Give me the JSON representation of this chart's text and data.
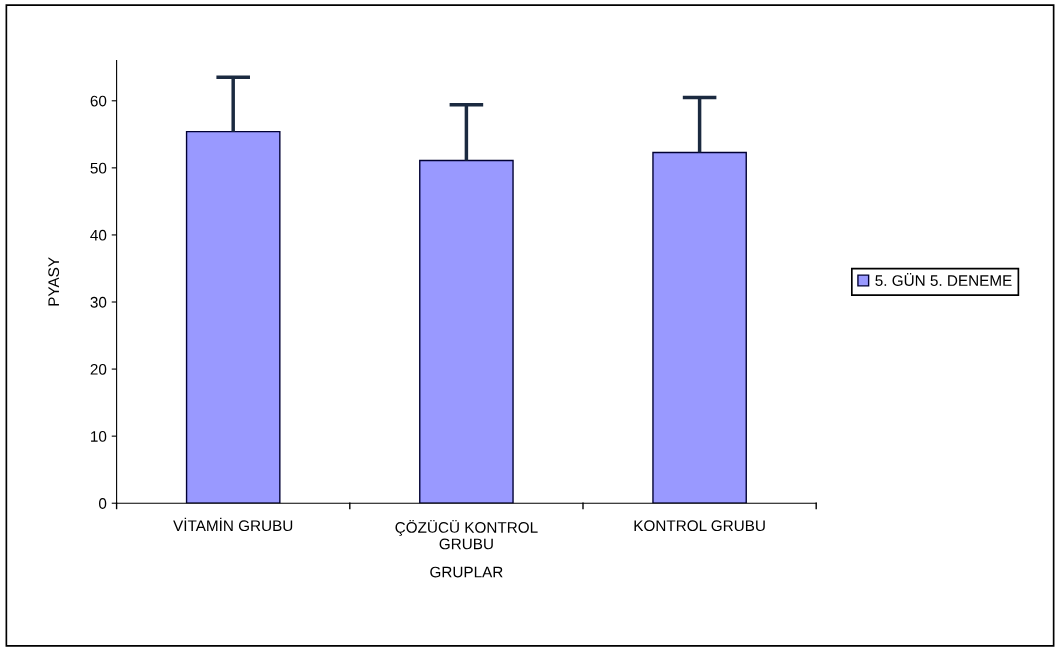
{
  "chart_data": {
    "type": "bar",
    "xlabel": "GRUPLAR",
    "ylabel": "PYASY",
    "categories": [
      "VİTAMİN GRUBU",
      "ÇÖZÜCÜ KONTROL\nGRUBU",
      "KONTROL GRUBU"
    ],
    "series": [
      {
        "name": "5. GÜN 5. DENEME",
        "color": "#9999ff",
        "values": [
          55.4,
          51.1,
          52.3
        ],
        "errors": [
          [
            55.4,
            63.5
          ],
          [
            51.1,
            59.4
          ],
          [
            52.3,
            60.5
          ]
        ]
      }
    ],
    "ylim": [
      0,
      66
    ],
    "yticks": [
      0,
      10,
      20,
      30,
      40,
      50,
      60
    ],
    "grid": false,
    "legend": "right"
  }
}
